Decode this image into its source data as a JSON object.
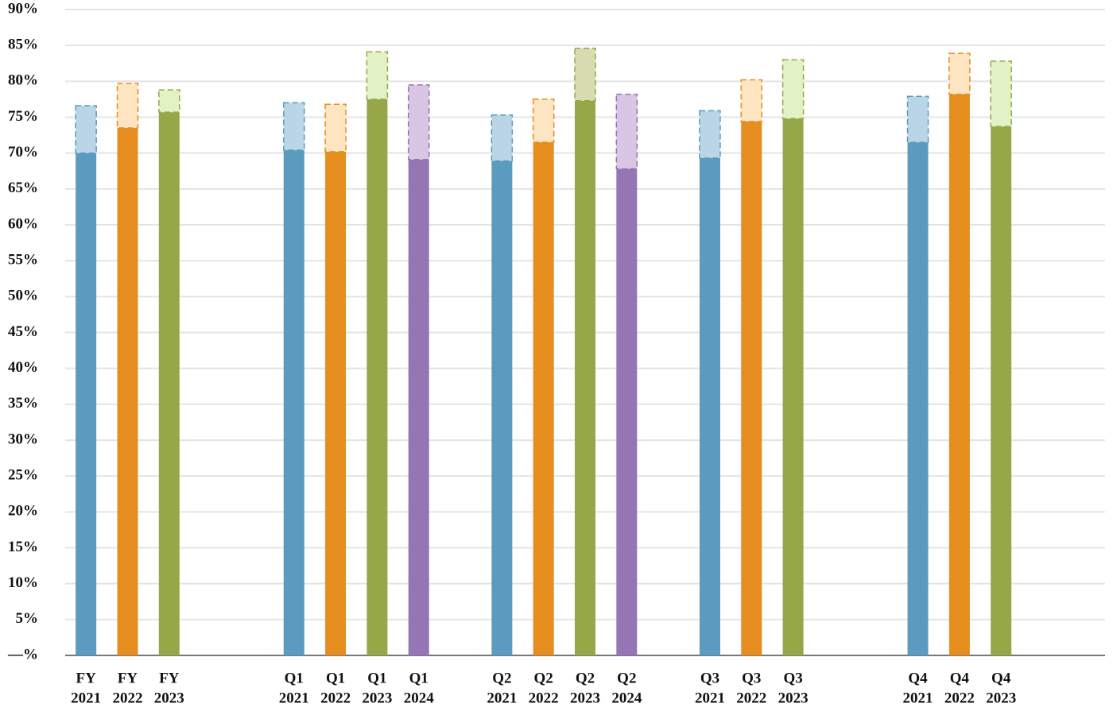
{
  "chart_data": {
    "type": "bar",
    "categories": [
      [
        "FY",
        "2021"
      ],
      [
        "FY",
        "2022"
      ],
      [
        "FY",
        "2023"
      ],
      null,
      null,
      [
        "Q1",
        "2021"
      ],
      [
        "Q1",
        "2022"
      ],
      [
        "Q1",
        "2023"
      ],
      [
        "Q1",
        "2024"
      ],
      null,
      [
        "Q2",
        "2021"
      ],
      [
        "Q2",
        "2022"
      ],
      [
        "Q2",
        "2023"
      ],
      [
        "Q2",
        "2024"
      ],
      null,
      [
        "Q3",
        "2021"
      ],
      [
        "Q3",
        "2022"
      ],
      [
        "Q3",
        "2023"
      ],
      null,
      null,
      [
        "Q4",
        "2021"
      ],
      [
        "Q4",
        "2022"
      ],
      [
        "Q4",
        "2023"
      ],
      null,
      null
    ],
    "values": [
      70.0,
      73.5,
      75.7,
      null,
      null,
      70.4,
      70.2,
      77.5,
      69.1,
      null,
      68.9,
      71.5,
      77.3,
      67.8,
      null,
      69.3,
      74.4,
      74.8,
      null,
      null,
      71.5,
      78.2,
      73.7,
      null,
      null
    ],
    "extra": [
      6.6,
      6.2,
      3.1,
      null,
      null,
      6.6,
      6.6,
      6.6,
      10.4,
      null,
      6.4,
      6.0,
      7.3,
      10.4,
      null,
      6.6,
      5.8,
      8.2,
      null,
      null,
      6.4,
      5.7,
      9.1,
      null,
      null
    ],
    "colors": [
      "#5a9bbf",
      "#e58e1f",
      "#96a748",
      null,
      null,
      "#5a9bbf",
      "#e58e1f",
      "#96a748",
      "#9575b3",
      null,
      "#5a9bbf",
      "#e58e1f",
      "#96a748",
      "#9575b3",
      null,
      "#5a9bbf",
      "#e58e1f",
      "#96a748",
      null,
      null,
      "#5a9bbf",
      "#e58e1f",
      "#96a748",
      null,
      null
    ],
    "light_colors": [
      "#bad6e6",
      "#fde5c2",
      "#e1f2c4",
      null,
      null,
      "#bad6e6",
      "#fde5c2",
      "#e1f2c4",
      "#d9c6e4",
      null,
      "#bad6e6",
      "#fde5c2",
      "#d8dcb0",
      "#d9c6e4",
      null,
      "#bad6e6",
      "#fde5c2",
      "#e1f2c4",
      null,
      null,
      "#bad6e6",
      "#fde5c2",
      "#e1f2c4",
      null,
      null
    ],
    "ylim": [
      0,
      90
    ],
    "yticks": [
      {
        "value": 0,
        "label": "—%"
      },
      {
        "value": 5,
        "label": "5%"
      },
      {
        "value": 10,
        "label": "10%"
      },
      {
        "value": 15,
        "label": "15%"
      },
      {
        "value": 20,
        "label": "20%"
      },
      {
        "value": 25,
        "label": "25%"
      },
      {
        "value": 30,
        "label": "30%"
      },
      {
        "value": 35,
        "label": "35%"
      },
      {
        "value": 40,
        "label": "40%"
      },
      {
        "value": 45,
        "label": "45%"
      },
      {
        "value": 50,
        "label": "50%"
      },
      {
        "value": 55,
        "label": "55%"
      },
      {
        "value": 60,
        "label": "60%"
      },
      {
        "value": 65,
        "label": "65%"
      },
      {
        "value": 70,
        "label": "70%"
      },
      {
        "value": 75,
        "label": "75%"
      },
      {
        "value": 80,
        "label": "80%"
      },
      {
        "value": 85,
        "label": "85%"
      },
      {
        "value": 90,
        "label": "90%"
      }
    ],
    "grid": true
  }
}
